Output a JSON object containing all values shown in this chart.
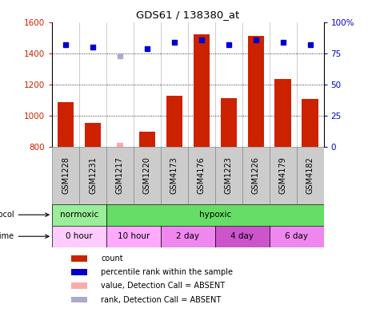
{
  "title": "GDS61 / 138380_at",
  "samples": [
    "GSM1228",
    "GSM1231",
    "GSM1217",
    "GSM1220",
    "GSM4173",
    "GSM4176",
    "GSM1223",
    "GSM1226",
    "GSM4179",
    "GSM4182"
  ],
  "bar_values": [
    1090,
    955,
    null,
    900,
    1130,
    1520,
    1115,
    1510,
    1235,
    1110
  ],
  "absent_bar_values": [
    null,
    null,
    830,
    null,
    null,
    null,
    null,
    null,
    null,
    null
  ],
  "rank_values": [
    82,
    80,
    null,
    79,
    84,
    86,
    82,
    86,
    84,
    82
  ],
  "absent_rank_values": [
    null,
    null,
    73,
    null,
    null,
    null,
    null,
    null,
    null,
    null
  ],
  "bar_color": "#cc2200",
  "absent_bar_color": "#ffaaaa",
  "rank_color": "#0000cc",
  "absent_rank_color": "#aaaacc",
  "ylim_left": [
    800,
    1600
  ],
  "ylim_right": [
    0,
    100
  ],
  "yticks_left": [
    800,
    1000,
    1200,
    1400,
    1600
  ],
  "yticks_right": [
    0,
    25,
    50,
    75,
    100
  ],
  "ytick_labels_right": [
    "0",
    "25",
    "50",
    "75",
    "100%"
  ],
  "bg_color": "#ffffff",
  "sample_bg": "#cccccc",
  "protocol_groups": [
    {
      "label": "normoxic",
      "start": 0,
      "end": 2,
      "color": "#99ee99"
    },
    {
      "label": "hypoxic",
      "start": 2,
      "end": 10,
      "color": "#66dd66"
    }
  ],
  "time_groups": [
    {
      "label": "0 hour",
      "start": 0,
      "end": 2,
      "color": "#ffccff"
    },
    {
      "label": "10 hour",
      "start": 2,
      "end": 4,
      "color": "#ffaaff"
    },
    {
      "label": "2 day",
      "start": 4,
      "end": 6,
      "color": "#ee88ee"
    },
    {
      "label": "4 day",
      "start": 6,
      "end": 8,
      "color": "#cc55cc"
    },
    {
      "label": "6 day",
      "start": 8,
      "end": 10,
      "color": "#ee88ee"
    }
  ],
  "legend_items": [
    {
      "label": "count",
      "color": "#cc2200"
    },
    {
      "label": "percentile rank within the sample",
      "color": "#0000cc"
    },
    {
      "label": "value, Detection Call = ABSENT",
      "color": "#ffaaaa"
    },
    {
      "label": "rank, Detection Call = ABSENT",
      "color": "#aaaacc"
    }
  ]
}
